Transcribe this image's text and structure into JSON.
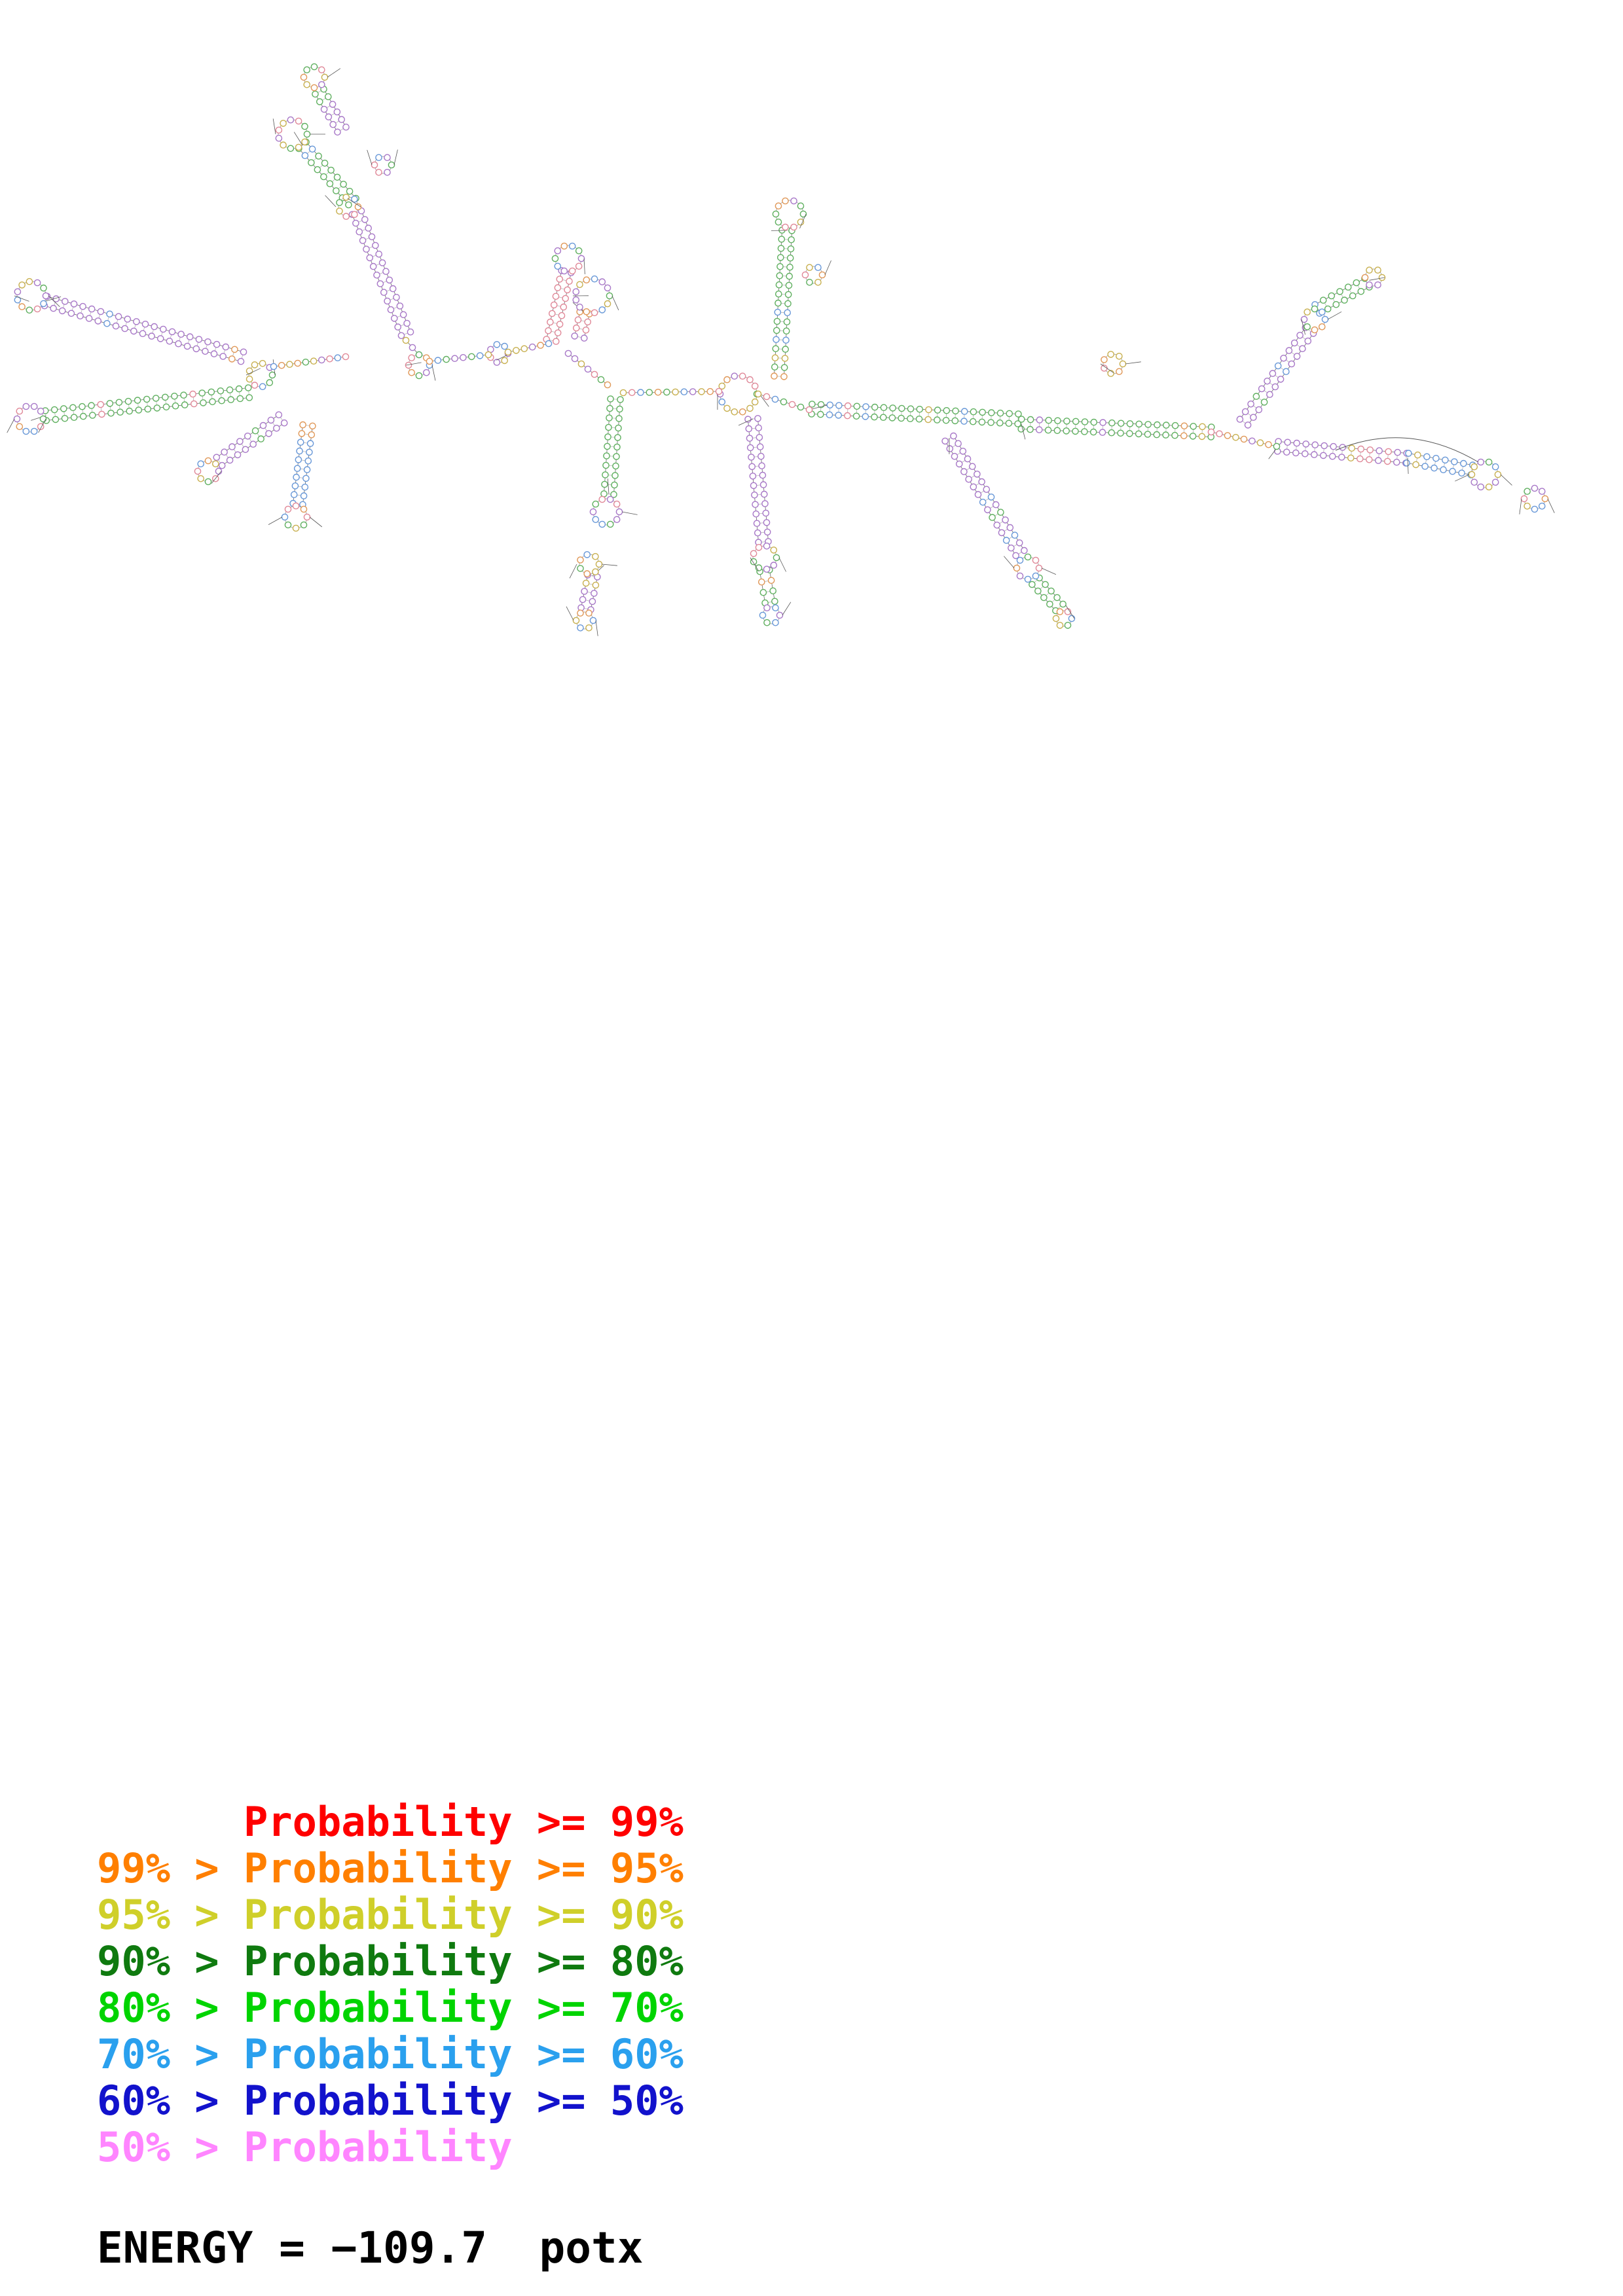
{
  "legend": {
    "entries": [
      {
        "text": "      Probability >= 99%",
        "color": "#ff0000"
      },
      {
        "text": "99% > Probability >= 95%",
        "color": "#ff7f00"
      },
      {
        "text": "95% > Probability >= 90%",
        "color": "#cfcf2a"
      },
      {
        "text": "90% > Probability >= 80%",
        "color": "#0f7a0f"
      },
      {
        "text": "80% > Probability >= 70%",
        "color": "#00d400"
      },
      {
        "text": "70% > Probability >= 60%",
        "color": "#2aa0ee"
      },
      {
        "text": "60% > Probability >= 50%",
        "color": "#1212cc"
      },
      {
        "text": "50% > Probability",
        "color": "#ff85ff"
      }
    ],
    "energy_text": "ENERGY = −109.7  potx"
  },
  "diagram": {
    "palette": [
      "#a878c8",
      "#60b060",
      "#e08898",
      "#6898d8",
      "#c8b050",
      "#e09858"
    ],
    "stems": [
      [
        70,
        460,
        370,
        545,
        "#a878c8"
      ],
      [
        70,
        635,
        380,
        600,
        "#60b060"
      ],
      [
        335,
        705,
        430,
        640,
        "#a878c8"
      ],
      [
        455,
        770,
        470,
        650,
        "#6898d8"
      ],
      [
        545,
        325,
        620,
        510,
        "#a878c8"
      ],
      [
        462,
        222,
        538,
        308,
        "#60b060"
      ],
      [
        488,
        140,
        522,
        198,
        "#a878c8"
      ],
      [
        865,
        415,
        842,
        520,
        "#e08898"
      ],
      [
        930,
        755,
        940,
        610,
        "#60b060"
      ],
      [
        905,
        880,
        895,
        930,
        "#a878c8"
      ],
      [
        1202,
        352,
        1190,
        575,
        "#60b060"
      ],
      [
        1240,
        625,
        1555,
        640,
        "#60b060"
      ],
      [
        1450,
        670,
        1558,
        845,
        "#a878c8"
      ],
      [
        1582,
        888,
        1618,
        928,
        "#60b060"
      ],
      [
        1560,
        648,
        1850,
        660,
        "#60b060"
      ],
      [
        1900,
        645,
        2000,
        505,
        "#a878c8"
      ],
      [
        2012,
        472,
        2088,
        432,
        "#60b060"
      ],
      [
        1952,
        682,
        2148,
        700,
        "#a878c8"
      ],
      [
        2150,
        700,
        2248,
        718,
        "#6898d8"
      ],
      [
        1150,
        640,
        1166,
        828,
        "#a878c8"
      ],
      [
        1168,
        872,
        1176,
        920,
        "#60b060"
      ],
      [
        893,
        478,
        885,
        515,
        "#e08898"
      ]
    ],
    "loops": [
      [
        48,
        452,
        22
      ],
      [
        46,
        640,
        20
      ],
      [
        318,
        720,
        16
      ],
      [
        452,
        790,
        17
      ],
      [
        447,
        205,
        22
      ],
      [
        585,
        252,
        13
      ],
      [
        480,
        118,
        16
      ],
      [
        532,
        316,
        15
      ],
      [
        868,
        395,
        20
      ],
      [
        905,
        452,
        26
      ],
      [
        926,
        782,
        20
      ],
      [
        900,
        862,
        15
      ],
      [
        893,
        948,
        13
      ],
      [
        1206,
        327,
        21
      ],
      [
        1243,
        420,
        13
      ],
      [
        1128,
        602,
        28
      ],
      [
        1168,
        852,
        18
      ],
      [
        1178,
        940,
        13
      ],
      [
        1570,
        868,
        17
      ],
      [
        1625,
        945,
        12
      ],
      [
        1700,
        556,
        15
      ],
      [
        2008,
        488,
        16
      ],
      [
        2098,
        424,
        13
      ],
      [
        2268,
        725,
        20
      ],
      [
        2344,
        762,
        16
      ],
      [
        640,
        558,
        16
      ],
      [
        762,
        540,
        14
      ],
      [
        398,
        573,
        18
      ]
    ],
    "chains": [
      [
        418,
        560,
        528,
        545
      ],
      [
        656,
        552,
        746,
        542
      ],
      [
        776,
        538,
        838,
        525
      ],
      [
        952,
        600,
        1098,
        598
      ],
      [
        1158,
        602,
        1236,
        626
      ],
      [
        1850,
        660,
        1950,
        682
      ],
      [
        868,
        540,
        928,
        588
      ],
      [
        620,
        520,
        640,
        542
      ]
    ],
    "curves": [
      [
        2040,
        688,
        2150,
        642,
        2258,
        706
      ]
    ]
  }
}
